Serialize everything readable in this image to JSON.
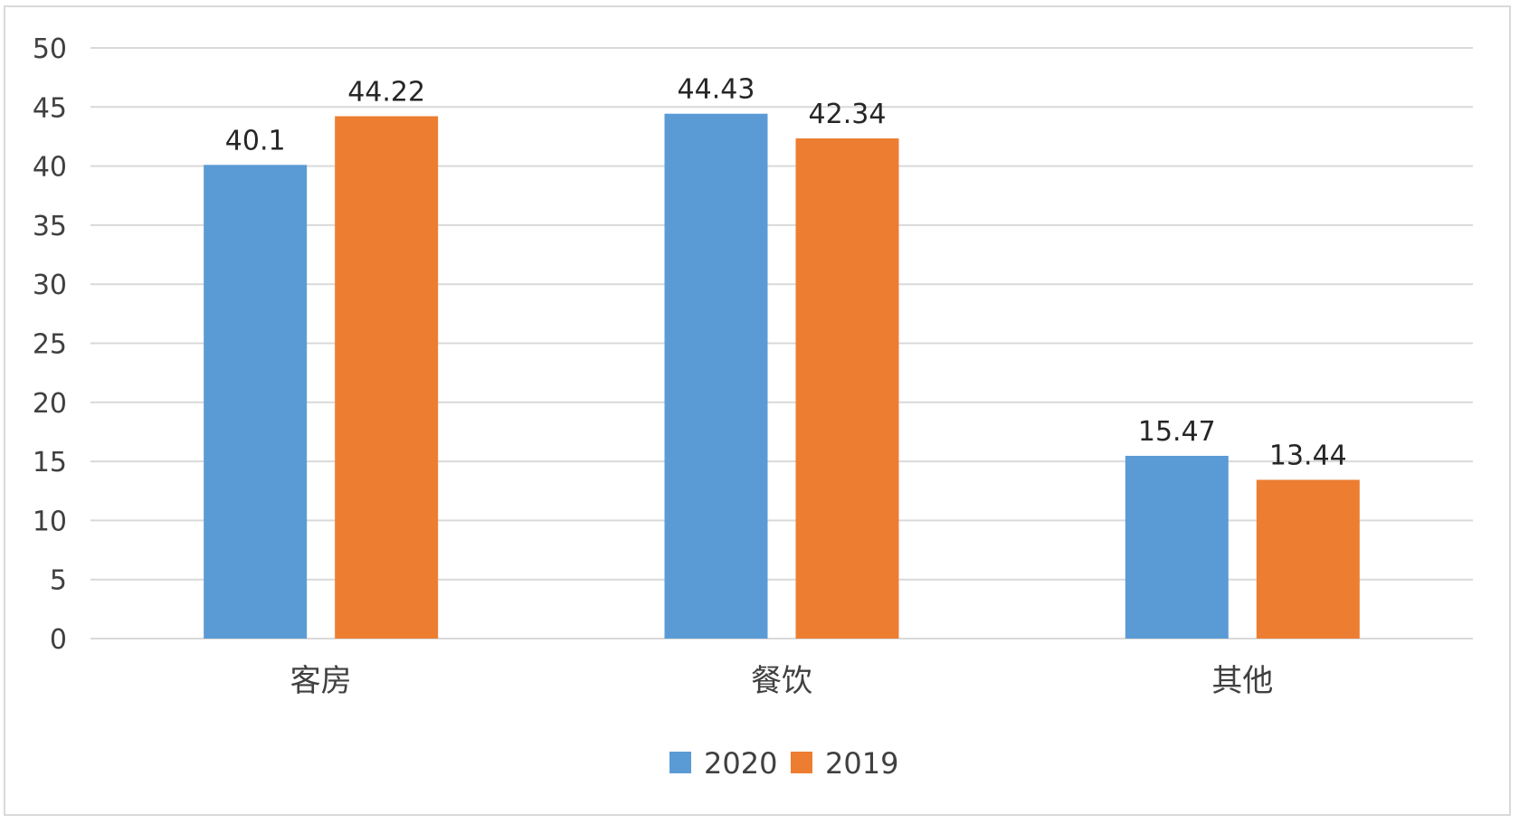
{
  "chart_data": {
    "type": "bar",
    "categories": [
      "客房",
      "餐饮",
      "其他"
    ],
    "series": [
      {
        "name": "2020",
        "values": [
          40.1,
          44.43,
          15.47
        ],
        "color": "#5b9bd5"
      },
      {
        "name": "2019",
        "values": [
          44.22,
          42.34,
          13.44
        ],
        "color": "#ed7d31"
      }
    ],
    "ylim": [
      0,
      50
    ],
    "yticks": [
      0,
      5,
      10,
      15,
      20,
      25,
      30,
      35,
      40,
      45,
      50
    ],
    "grid": true,
    "grid_color": "#d9d9d9",
    "legend_position": "bottom",
    "data_labels": true
  }
}
